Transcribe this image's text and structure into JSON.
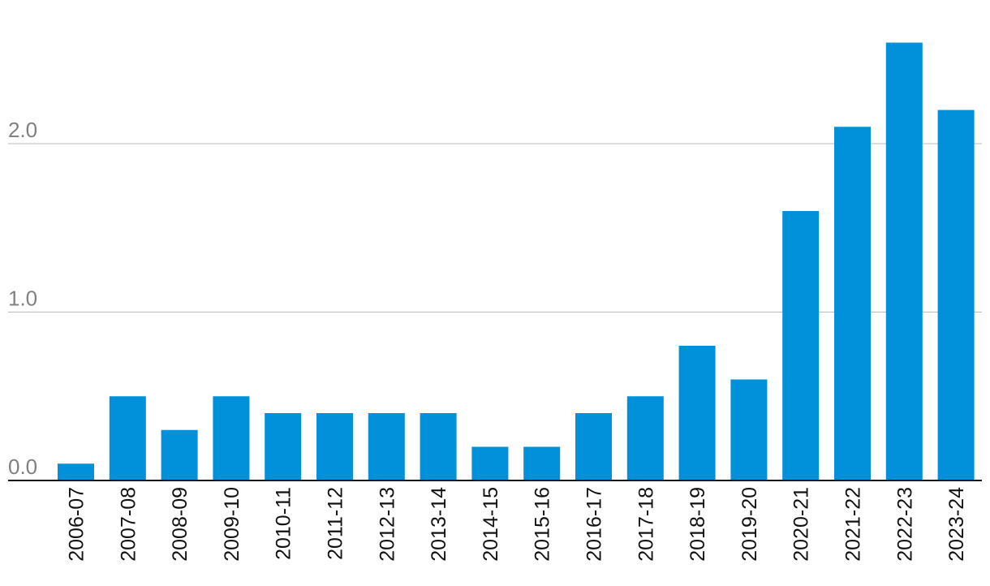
{
  "chart_data": {
    "type": "bar",
    "title": "",
    "xlabel": "",
    "ylabel": "",
    "categories": [
      "2006-07",
      "2007-08",
      "2008-09",
      "2009-10",
      "2010-11",
      "2011-12",
      "2012-13",
      "2013-14",
      "2014-15",
      "2015-16",
      "2016-17",
      "2017-18",
      "2018-19",
      "2019-20",
      "2020-21",
      "2021-22",
      "2022-23",
      "2023-24"
    ],
    "values": [
      0.1,
      0.5,
      0.3,
      0.5,
      0.4,
      0.4,
      0.4,
      0.4,
      0.2,
      0.2,
      0.4,
      0.5,
      0.8,
      0.6,
      1.6,
      2.1,
      2.6,
      2.2
    ],
    "yticks": [
      "0.0",
      "1.0",
      "2.0"
    ],
    "ylim": [
      0,
      2.6
    ],
    "grid": true,
    "legend": "none",
    "colors": {
      "bar": "#0091da",
      "grid": "#bbbbbb",
      "axis": "#111111",
      "ytick": "#808080"
    }
  }
}
